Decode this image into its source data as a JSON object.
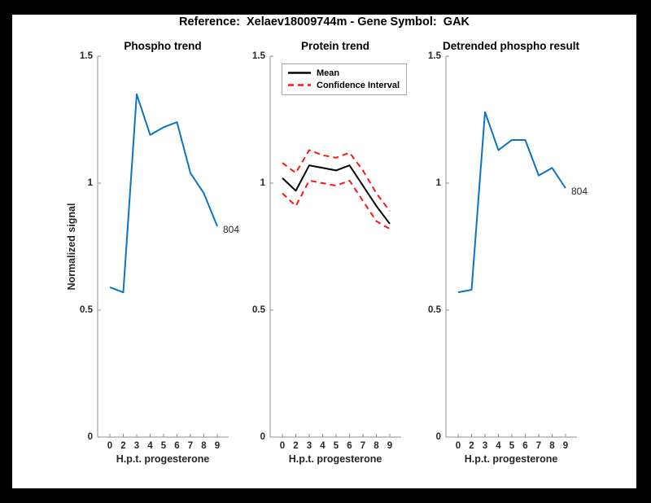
{
  "window": {
    "title": "Reference:  Xelaev18009744m - Gene Symbol:  GAK"
  },
  "colors": {
    "blue": "#0b74c4",
    "red": "#ff1414",
    "black": "#000000",
    "axis": "#8f8f8f",
    "text": "#262626"
  },
  "axes": {
    "yticks": [
      "0",
      "0.5",
      "1",
      "1.5"
    ],
    "ytick_values": [
      0,
      0.5,
      1,
      1.5
    ],
    "ylim": [
      0,
      1.5
    ]
  },
  "legend": {
    "position": "top-left-inside",
    "entries": [
      {
        "label": "Mean",
        "style": "solid",
        "color": "#000000"
      },
      {
        "label": "Confidence Interval",
        "style": "dashed",
        "color": "#ff1414"
      }
    ]
  },
  "chart_data": [
    {
      "type": "line",
      "title": "Phospho trend",
      "xlabel": "H.p.t. progesterone",
      "ylabel": "Normalized signal",
      "categories": [
        "0",
        "2",
        "3",
        "4",
        "5",
        "6",
        "7",
        "8",
        "9"
      ],
      "ylim": [
        0,
        1.5
      ],
      "grid": false,
      "series": [
        {
          "name": "phospho-804",
          "color": "#0b74c4",
          "style": "solid",
          "end_label": "804",
          "values": [
            0.59,
            0.57,
            1.35,
            1.19,
            1.22,
            1.24,
            1.04,
            0.96,
            0.83
          ]
        }
      ]
    },
    {
      "type": "line",
      "title": "Protein trend",
      "xlabel": "H.p.t. progesterone",
      "ylabel": "",
      "categories": [
        "0",
        "2",
        "3",
        "4",
        "5",
        "6",
        "7",
        "8",
        "9"
      ],
      "ylim": [
        0,
        1.5
      ],
      "grid": false,
      "series": [
        {
          "name": "mean",
          "color": "#000000",
          "style": "solid",
          "end_label": "",
          "values": [
            1.02,
            0.97,
            1.07,
            1.06,
            1.05,
            1.07,
            0.99,
            0.91,
            0.84
          ]
        },
        {
          "name": "confidence-upper",
          "color": "#ff1414",
          "style": "dashed",
          "end_label": "",
          "values": [
            1.08,
            1.04,
            1.13,
            1.11,
            1.1,
            1.12,
            1.05,
            0.96,
            0.89
          ]
        },
        {
          "name": "confidence-lower",
          "color": "#ff1414",
          "style": "dashed",
          "end_label": "",
          "values": [
            0.96,
            0.91,
            1.01,
            1.0,
            0.99,
            1.01,
            0.93,
            0.85,
            0.82
          ]
        }
      ]
    },
    {
      "type": "line",
      "title": "Detrended phospho result",
      "xlabel": "H.p.t. progesterone",
      "ylabel": "",
      "categories": [
        "0",
        "2",
        "3",
        "4",
        "5",
        "6",
        "7",
        "8",
        "9"
      ],
      "ylim": [
        0,
        1.5
      ],
      "grid": false,
      "series": [
        {
          "name": "detrended-804",
          "color": "#0b74c4",
          "style": "solid",
          "end_label": "804",
          "values": [
            0.57,
            0.58,
            1.28,
            1.13,
            1.17,
            1.17,
            1.03,
            1.06,
            0.98
          ]
        }
      ]
    }
  ]
}
